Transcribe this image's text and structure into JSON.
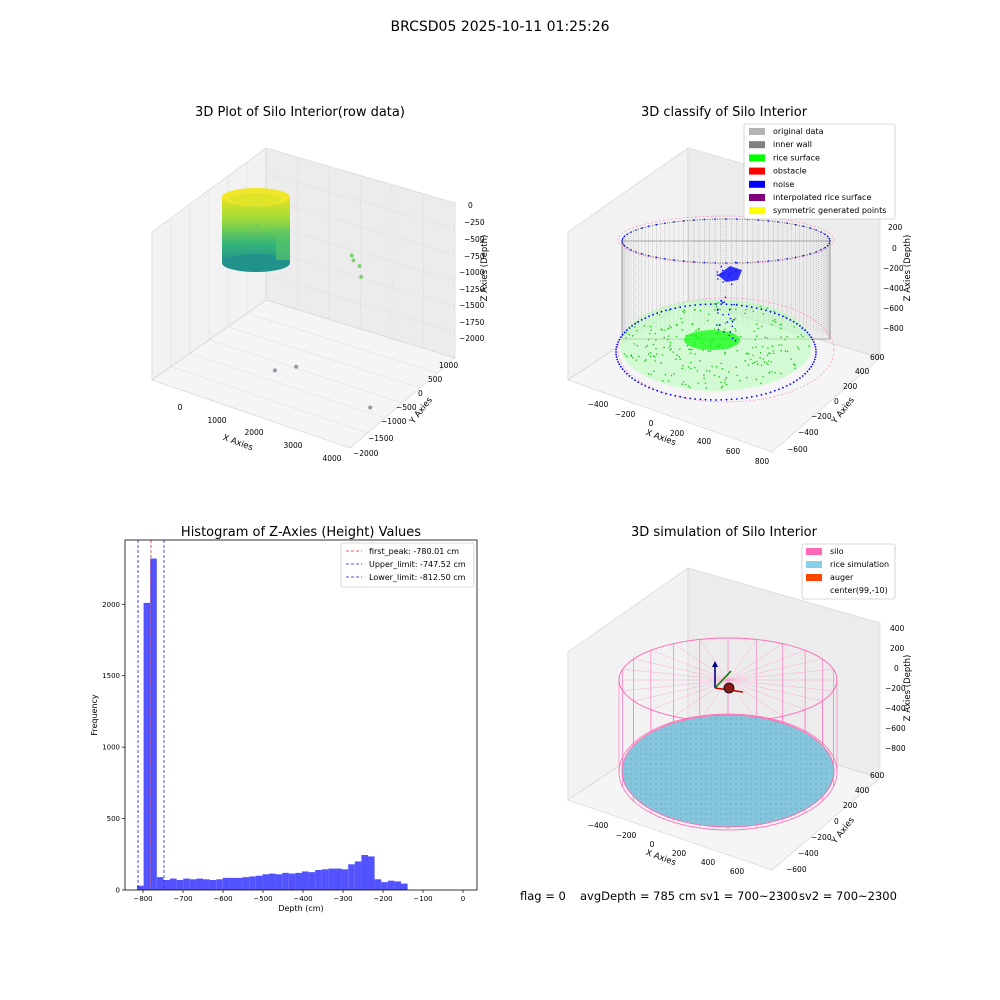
{
  "figure": {
    "suptitle": "BRCSD05 2025-10-11 01:25:26",
    "footer": {
      "flag": "flag = 0",
      "avg_depth": "avgDepth = 785 cm",
      "sv1": "sv1 = 700~2300",
      "sv2": "sv2 = 700~2300"
    }
  },
  "chart_data": [
    {
      "type": "scatter",
      "projection": "3d",
      "title": "3D Plot of Silo Interior(row data)",
      "xlabel": "X Axies",
      "ylabel": "Y Axies",
      "zlabel": "Z Axies (Depth)",
      "x_ticks": [
        "0",
        "1000",
        "2000",
        "3000",
        "4000"
      ],
      "y_ticks": [
        "−2000",
        "−1500",
        "−1000",
        "−500",
        "0",
        "500",
        "1000"
      ],
      "z_ticks": [
        "0",
        "−250",
        "−500",
        "−750",
        "−1000",
        "−1250",
        "−1500",
        "−1750",
        "−2000"
      ],
      "xlim": [
        -200,
        4000
      ],
      "ylim": [
        -2000,
        1200
      ],
      "zlim": [
        -2000,
        100
      ],
      "colormap": "viridis",
      "grid": true,
      "outlier_points": [
        {
          "x": 2150,
          "y": 500,
          "z": -600
        },
        {
          "x": 2200,
          "y": 480,
          "z": -650
        },
        {
          "x": 2300,
          "y": 520,
          "z": -720
        },
        {
          "x": 2500,
          "y": 300,
          "z": -750
        },
        {
          "x": -250,
          "y": 1000,
          "z": -900
        },
        {
          "x": 1500,
          "y": -800,
          "z": -1900
        },
        {
          "x": 1800,
          "y": -600,
          "z": -1850
        },
        {
          "x": 3900,
          "y": -1300,
          "z": -1700
        }
      ]
    },
    {
      "type": "scatter",
      "projection": "3d",
      "title": "3D classify of Silo Interior",
      "xlabel": "X Axies",
      "ylabel": "Y Axies",
      "zlabel": "Z Axies (Depth)",
      "x_ticks": [
        "−400",
        "−200",
        "0",
        "200",
        "400",
        "600",
        "800"
      ],
      "y_ticks": [
        "−600",
        "−400",
        "−200",
        "0",
        "200",
        "400",
        "600"
      ],
      "z_ticks": [
        "200",
        "0",
        "−200",
        "−400",
        "−600",
        "−800"
      ],
      "legend_position": "top-right",
      "grid": true,
      "legend": [
        {
          "label": "original data",
          "color": "#b3b3b3"
        },
        {
          "label": "inner wall",
          "color": "#808080"
        },
        {
          "label": "rice surface",
          "color": "#00ff00"
        },
        {
          "label": "obstacle",
          "color": "#ff0000"
        },
        {
          "label": "noise",
          "color": "#0000ff"
        },
        {
          "label": "interpolated rice surface",
          "color": "#800080"
        },
        {
          "label": "symmetric generated points",
          "color": "#ffff00"
        }
      ]
    },
    {
      "type": "bar",
      "title": "Histogram of Z-Axies (Height) Values",
      "xlabel": "Depth (cm)",
      "ylabel": "Frequency",
      "xlim": [
        -845,
        35
      ],
      "ylim": [
        0,
        2450
      ],
      "x_ticks": [
        -800,
        -700,
        -600,
        -500,
        -400,
        -300,
        -200,
        -100,
        0
      ],
      "y_ticks": [
        0,
        500,
        1000,
        1500,
        2000
      ],
      "bin_width": 16.5,
      "bin_start": -815,
      "values": [
        30,
        2010,
        2320,
        90,
        70,
        80,
        70,
        80,
        75,
        80,
        75,
        70,
        75,
        85,
        85,
        85,
        90,
        95,
        100,
        110,
        115,
        110,
        120,
        115,
        120,
        130,
        125,
        140,
        145,
        150,
        150,
        145,
        180,
        200,
        245,
        235,
        75,
        55,
        65,
        60,
        45
      ],
      "bar_color": "#5252ff",
      "legend_position": "top-right",
      "reference_lines": [
        {
          "label": "first_peak: -780.01 cm",
          "value": -780.01,
          "color": "#d62728"
        },
        {
          "label": "Upper_limit: -747.52 cm",
          "value": -747.52,
          "color": "#1f1fbf"
        },
        {
          "label": "Lower_limit: -812.50 cm",
          "value": -812.5,
          "color": "#1f1fbf"
        }
      ]
    },
    {
      "type": "surface",
      "projection": "3d",
      "title": "3D simulation of Silo Interior",
      "xlabel": "X Axies",
      "ylabel": "Y Axies",
      "zlabel": "Z Axies (Depth)",
      "x_ticks": [
        "−400",
        "−200",
        "0",
        "200",
        "400",
        "600"
      ],
      "y_ticks": [
        "−600",
        "−400",
        "−200",
        "0",
        "200",
        "400",
        "600"
      ],
      "z_ticks": [
        "400",
        "200",
        "0",
        "−200",
        "−400",
        "−600",
        "−800"
      ],
      "legend_position": "top-right",
      "grid": true,
      "legend": [
        {
          "label": "silo",
          "color": "#ff69b4"
        },
        {
          "label": "rice simulation",
          "color": "#87ceeb"
        },
        {
          "label": "auger",
          "color": "#ff4500"
        },
        {
          "label": "center(99,-10)",
          "color": ""
        }
      ]
    }
  ]
}
